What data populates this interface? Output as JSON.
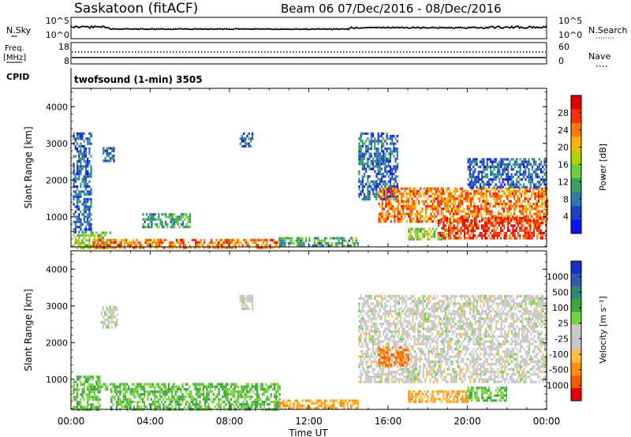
{
  "header": {
    "station": "Saskatoon (fitACF)",
    "beam_and_dates": "Beam 06  07/Dec/2016 - 08/Dec/2016"
  },
  "noise_panel": {
    "left_label": "N.Sky",
    "left_ticks": [
      "10^5",
      "10^0"
    ],
    "right_label": "N.Search",
    "right_ticks": [
      "10^5",
      "10^0"
    ]
  },
  "freq_panel": {
    "left_label_1": "Freq.",
    "left_label_2": "[MHz]",
    "left_ticks": [
      "18",
      "8"
    ],
    "right_label": "Nave",
    "right_ticks": [
      "60",
      "0"
    ]
  },
  "cpid_panel": {
    "label": "CPID",
    "mode": "twofsound (1-min) 3505"
  },
  "axes": {
    "x_ticks": [
      "00:00",
      "04:00",
      "08:00",
      "12:00",
      "16:00",
      "20:00",
      "00:00"
    ],
    "x_label": "Time UT",
    "y_ticks": [
      "4000",
      "3000",
      "2000",
      "1000"
    ],
    "y_label": "Slant Range [km]"
  },
  "power_colorbar": {
    "title": "Power [dB]",
    "ticks": [
      "28",
      "24",
      "20",
      "16",
      "12",
      "8",
      "4"
    ],
    "colors": [
      "#e00000",
      "#ff3000",
      "#ff7a00",
      "#ffb400",
      "#b0d000",
      "#6ccc3c",
      "#38a060",
      "#2e7ab0",
      "#2040c8",
      "#1010ff"
    ]
  },
  "velocity_colorbar": {
    "title": "Velocity [m s⁻¹]",
    "ticks": [
      "1000",
      "500",
      "100",
      "25",
      "-25",
      "-100",
      "-500",
      "-1000"
    ],
    "colors": [
      "#1a2ec8",
      "#2e58a8",
      "#2a8a70",
      "#3ca83c",
      "#78d23c",
      "#c8c8c8",
      "#c8c8c8",
      "#ffc040",
      "#ff9010",
      "#ff5a00",
      "#e80000"
    ]
  },
  "chart_data": {
    "type": "heatmap",
    "x_range_hours": [
      0,
      24
    ],
    "y_range_km": [
      180,
      4500
    ],
    "power_regions": [
      {
        "t0": 0.1,
        "t1": 2.0,
        "r0": 180,
        "r1": 600,
        "value_db": 16
      },
      {
        "t0": 0.1,
        "t1": 1.0,
        "r0": 600,
        "r1": 3300,
        "value_db": 8
      },
      {
        "t0": 1.6,
        "t1": 2.2,
        "r0": 2500,
        "r1": 2900,
        "value_db": 8
      },
      {
        "t0": 1.0,
        "t1": 10.5,
        "r0": 180,
        "r1": 400,
        "value_db": 24
      },
      {
        "t0": 3.6,
        "t1": 6.0,
        "r0": 700,
        "r1": 1100,
        "value_db": 12
      },
      {
        "t0": 10.5,
        "t1": 14.5,
        "r0": 180,
        "r1": 450,
        "value_db": 12
      },
      {
        "t0": 8.5,
        "t1": 9.2,
        "r0": 2900,
        "r1": 3300,
        "value_db": 8
      },
      {
        "t0": 14.5,
        "t1": 16.5,
        "r0": 1500,
        "r1": 3300,
        "value_db": 8
      },
      {
        "t0": 15.5,
        "t1": 24.0,
        "r0": 900,
        "r1": 1800,
        "value_db": 24
      },
      {
        "t0": 17.0,
        "t1": 19.0,
        "r0": 400,
        "r1": 700,
        "value_db": 16
      },
      {
        "t0": 18.5,
        "t1": 24.0,
        "r0": 400,
        "r1": 1000,
        "value_db": 28
      },
      {
        "t0": 20.0,
        "t1": 24.0,
        "r0": 1800,
        "r1": 2600,
        "value_db": 8
      }
    ],
    "velocity_regions": [
      {
        "t0": 0.1,
        "t1": 1.5,
        "r0": 180,
        "r1": 1100,
        "value_ms": 100
      },
      {
        "t0": 1.5,
        "t1": 2.3,
        "r0": 2400,
        "r1": 3000,
        "value_ms": 0
      },
      {
        "t0": 1.0,
        "t1": 2.0,
        "r0": 700,
        "r1": 900,
        "value_ms": 100
      },
      {
        "t0": 2.0,
        "t1": 10.5,
        "r0": 200,
        "r1": 900,
        "value_ms": 100
      },
      {
        "t0": 8.5,
        "t1": 9.2,
        "r0": 2900,
        "r1": 3300,
        "value_ms": 0
      },
      {
        "t0": 10.5,
        "t1": 14.5,
        "r0": 200,
        "r1": 450,
        "value_ms": -100
      },
      {
        "t0": 14.5,
        "t1": 24.0,
        "r0": 900,
        "r1": 3300,
        "value_ms": 0
      },
      {
        "t0": 15.5,
        "t1": 17.0,
        "r0": 1400,
        "r1": 1900,
        "value_ms": -500
      },
      {
        "t0": 17.0,
        "t1": 20.0,
        "r0": 400,
        "r1": 700,
        "value_ms": -100
      },
      {
        "t0": 20.0,
        "t1": 22.0,
        "r0": 400,
        "r1": 800,
        "value_ms": 100
      }
    ]
  }
}
